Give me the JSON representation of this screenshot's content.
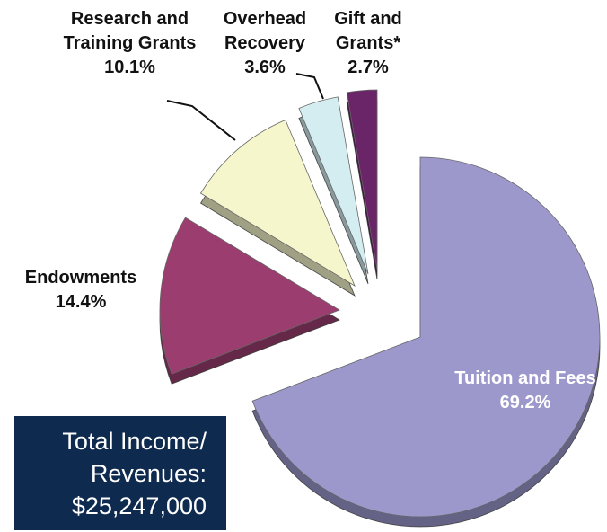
{
  "chart_data": {
    "type": "pie",
    "categories": [
      "Tuition and Fees",
      "Endowments",
      "Research and Training Grants",
      "Overhead Recovery",
      "Gift and Grants*"
    ],
    "values": [
      69.2,
      14.4,
      10.1,
      3.6,
      2.7
    ],
    "value_labels": [
      "69.2%",
      "14.4%",
      "10.1%",
      "3.6%",
      "2.7%"
    ],
    "colors": [
      "#9c98cc",
      "#9b3e6f",
      "#f6f6cc",
      "#d3edf1",
      "#6a2468"
    ],
    "annotations": [
      "Total Income/ Revenues:",
      "$25,247,000"
    ]
  }
}
